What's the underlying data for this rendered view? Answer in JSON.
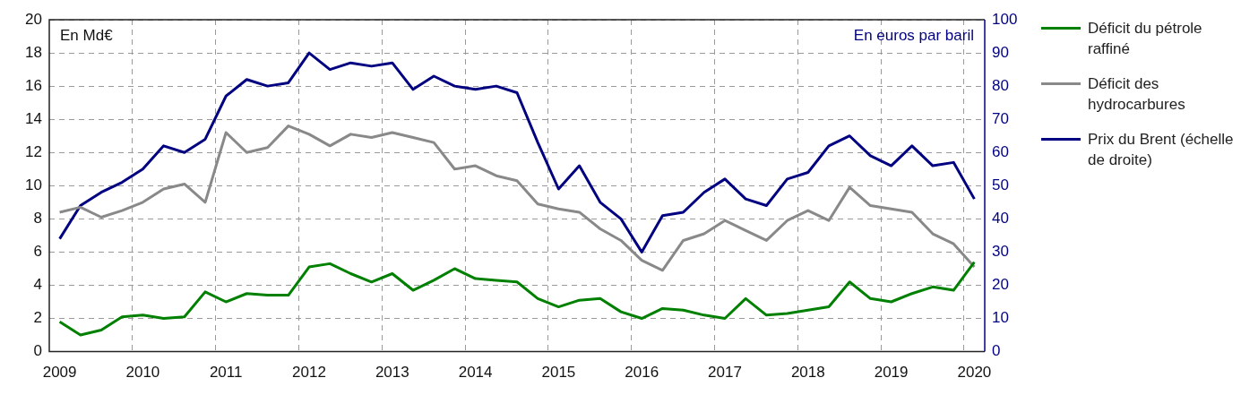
{
  "chart_data": {
    "type": "line",
    "ylabel": "En Md€",
    "y2label": "En euros par baril",
    "categories": [
      "2009",
      null,
      null,
      null,
      "2010",
      null,
      null,
      null,
      "2011",
      null,
      null,
      null,
      "2012",
      null,
      null,
      null,
      "2013",
      null,
      null,
      null,
      "2014",
      null,
      null,
      null,
      "2015",
      null,
      null,
      null,
      "2016",
      null,
      null,
      null,
      "2017",
      null,
      null,
      null,
      "2018",
      null,
      null,
      null,
      "2019",
      null,
      null,
      null,
      "2020"
    ],
    "series": [
      {
        "name": "Déficit du pétrole raffiné",
        "color": "#008000",
        "values": [
          1.8,
          1.0,
          1.3,
          2.1,
          2.2,
          2.0,
          2.1,
          3.6,
          3.0,
          3.5,
          3.4,
          3.4,
          5.1,
          5.3,
          4.7,
          4.2,
          4.7,
          3.7,
          4.3,
          5.0,
          4.4,
          4.3,
          4.2,
          3.2,
          2.7,
          3.1,
          3.2,
          2.4,
          2.0,
          2.6,
          2.5,
          2.2,
          2.0,
          3.2,
          2.2,
          2.3,
          2.5,
          2.7,
          4.2,
          3.2,
          3.0,
          3.5,
          3.9,
          3.7,
          5.4
        ]
      },
      {
        "name": "Déficit des hydrocarbures",
        "color": "#898989",
        "values": [
          8.4,
          8.7,
          8.1,
          8.5,
          9.0,
          9.8,
          10.1,
          9.0,
          13.2,
          12.0,
          12.3,
          13.6,
          13.1,
          12.4,
          13.1,
          12.9,
          13.2,
          12.9,
          12.6,
          11.0,
          11.2,
          10.6,
          10.3,
          8.9,
          8.6,
          8.4,
          7.4,
          6.7,
          5.5,
          4.9,
          6.7,
          7.1,
          7.9,
          7.3,
          6.7,
          7.9,
          8.5,
          7.9,
          9.9,
          8.8,
          8.6,
          8.4,
          7.1,
          6.5,
          5.1
        ]
      },
      {
        "name": "Prix du Brent (échelle de droite)",
        "color": "#000080",
        "axis": "y2",
        "values": [
          34,
          44,
          48,
          51,
          55,
          62,
          60,
          64,
          77,
          82,
          80,
          81,
          90,
          85,
          87,
          86,
          87,
          79,
          83,
          80,
          79,
          80,
          78,
          63,
          49,
          56,
          45,
          40,
          30,
          41,
          42,
          48,
          52,
          46,
          44,
          52,
          54,
          62,
          65,
          59,
          56,
          62,
          56,
          57,
          46
        ]
      }
    ],
    "ylim": [
      0,
      20
    ],
    "yticks": [
      0,
      2,
      4,
      6,
      8,
      10,
      12,
      14,
      16,
      18,
      20
    ],
    "y2lim": [
      0,
      100
    ],
    "y2ticks": [
      0,
      10,
      20,
      30,
      40,
      50,
      60,
      70,
      80,
      90,
      100
    ],
    "grid": true,
    "legend": "right",
    "marker": "none",
    "line_style": "solid"
  }
}
